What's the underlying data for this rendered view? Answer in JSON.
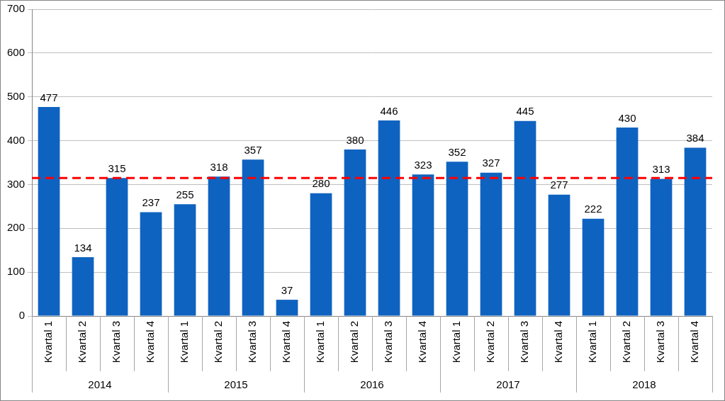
{
  "chart_data": {
    "type": "bar",
    "categories": [
      "Kvartal 1",
      "Kvartal 2",
      "Kvartal 3",
      "Kvartal 4",
      "Kvartal 1",
      "Kvartal 2",
      "Kvartal 3",
      "Kvartal 4",
      "Kvartal 1",
      "Kvartal 2",
      "Kvartal 3",
      "Kvartal 4",
      "Kvartal 1",
      "Kvartal 2",
      "Kvartal 3",
      "Kvartal 4",
      "Kvartal 1",
      "Kvartal 2",
      "Kvartal 3",
      "Kvartal 4"
    ],
    "category_groups": [
      "2014",
      "2015",
      "2016",
      "2017",
      "2018"
    ],
    "values": [
      477,
      134,
      315,
      237,
      255,
      318,
      357,
      37,
      280,
      380,
      446,
      323,
      352,
      327,
      445,
      277,
      222,
      430,
      313,
      384
    ],
    "color": "#0f63c0",
    "reference_line": 315,
    "ylim": [
      0,
      700
    ],
    "yticks": [
      0,
      100,
      200,
      300,
      400,
      500,
      600,
      700
    ],
    "grid": true,
    "data_labels": true
  }
}
